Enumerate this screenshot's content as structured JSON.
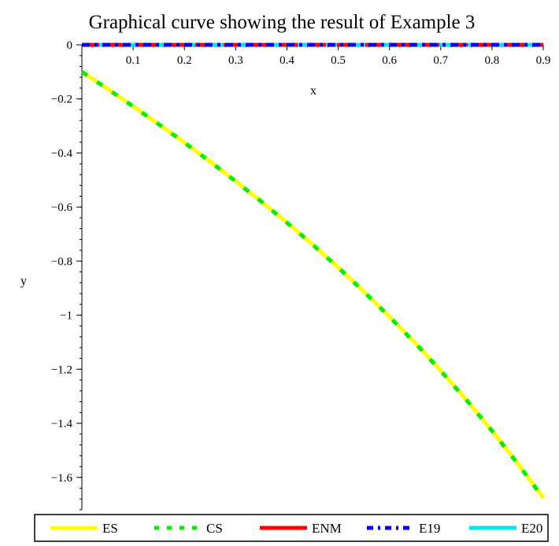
{
  "chart_data": {
    "type": "line",
    "title": "Graphical curve showing the result of  Example 3",
    "xlabel": "x",
    "ylabel": "y",
    "xlim": [
      0,
      0.9
    ],
    "ylim": [
      -1.72,
      0
    ],
    "x_ticks": [
      0.1,
      0.2,
      0.3,
      0.4,
      0.5,
      0.6,
      0.7,
      0.8,
      0.9
    ],
    "x_tick_labels": [
      "0.1",
      "0.2",
      "0.3",
      "0.4",
      "0.5",
      "0.6",
      "0.7",
      "0.8",
      "0.9"
    ],
    "y_ticks": [
      0,
      -0.2,
      -0.4,
      -0.6,
      -0.8,
      -1,
      -1.2,
      -1.4,
      -1.6
    ],
    "y_tick_labels": [
      "0",
      "−0.2",
      "−0.4",
      "−0.6",
      "−0.8",
      "−1",
      "−1.2",
      "−1.4",
      "−1.6"
    ],
    "legend_position": "bottom",
    "series": [
      {
        "name": "ES",
        "color": "#ffff00",
        "style": "solid",
        "x": [
          0,
          0.05,
          0.1,
          0.15,
          0.2,
          0.25,
          0.3,
          0.35,
          0.4,
          0.45,
          0.5,
          0.55,
          0.6,
          0.65,
          0.7,
          0.75,
          0.8,
          0.85,
          0.9
        ],
        "y": [
          -0.1,
          -0.163,
          -0.228,
          -0.294,
          -0.362,
          -0.432,
          -0.505,
          -0.58,
          -0.658,
          -0.739,
          -0.824,
          -0.913,
          -1.006,
          -1.103,
          -1.206,
          -1.314,
          -1.428,
          -1.549,
          -1.677
        ]
      },
      {
        "name": "CS",
        "color": "#00ee00",
        "style": "dotted",
        "x": [
          0,
          0.05,
          0.1,
          0.15,
          0.2,
          0.25,
          0.3,
          0.35,
          0.4,
          0.45,
          0.5,
          0.55,
          0.6,
          0.65,
          0.7,
          0.75,
          0.8,
          0.85,
          0.9
        ],
        "y": [
          -0.1,
          -0.163,
          -0.228,
          -0.294,
          -0.362,
          -0.432,
          -0.505,
          -0.58,
          -0.658,
          -0.739,
          -0.824,
          -0.913,
          -1.006,
          -1.103,
          -1.206,
          -1.314,
          -1.428,
          -1.549,
          -1.677
        ]
      },
      {
        "name": "ENM",
        "color": "#ff0000",
        "style": "dashed",
        "x": [
          0,
          0.1,
          0.2,
          0.3,
          0.4,
          0.5,
          0.6,
          0.7,
          0.8,
          0.9
        ],
        "y": [
          0,
          0,
          0,
          0,
          0,
          0,
          0,
          0,
          0,
          0
        ]
      },
      {
        "name": "E19",
        "color": "#0000ee",
        "style": "dashdot",
        "x": [
          0,
          0.1,
          0.2,
          0.3,
          0.4,
          0.5,
          0.6,
          0.7,
          0.8,
          0.9
        ],
        "y": [
          0,
          0,
          0,
          0,
          0,
          0,
          0,
          0,
          0,
          0
        ]
      },
      {
        "name": "E20",
        "color": "#00e5ee",
        "style": "solid",
        "x": [
          0,
          0.1,
          0.2,
          0.3,
          0.4,
          0.5,
          0.6,
          0.7,
          0.8,
          0.9
        ],
        "y": [
          0,
          0,
          0,
          0,
          0,
          0,
          0,
          0,
          0,
          0
        ]
      }
    ]
  }
}
